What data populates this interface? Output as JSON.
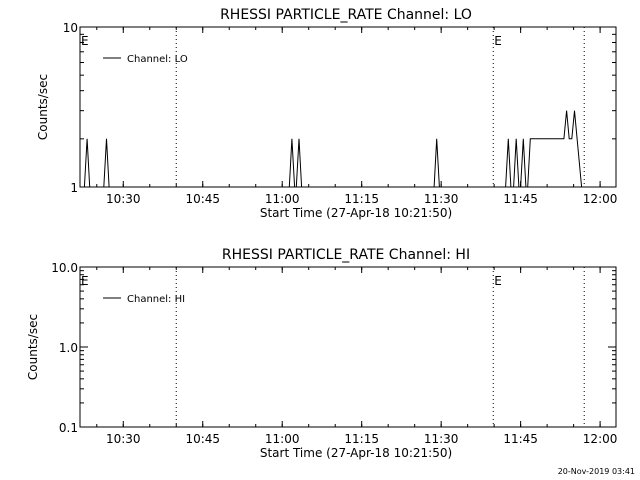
{
  "timestamp": "20-Nov-2019 03:41",
  "chart_data": [
    {
      "type": "line",
      "title": "RHESSI PARTICLE_RATE Channel: LO",
      "xlabel": "Start Time (27-Apr-18 10:21:50)",
      "ylabel": "Counts/sec",
      "yscale": "log",
      "ylim": [
        1,
        10
      ],
      "xlim": [
        "10:21:50",
        "12:03:00"
      ],
      "y_ticks": [
        {
          "value": 1,
          "label": "1"
        },
        {
          "value": 10,
          "label": "10"
        }
      ],
      "x_ticks": [
        {
          "time": "10:30",
          "label": "10:30"
        },
        {
          "time": "10:45",
          "label": "10:45"
        },
        {
          "time": "11:00",
          "label": "11:00"
        },
        {
          "time": "11:15",
          "label": "11:15"
        },
        {
          "time": "11:30",
          "label": "11:30"
        },
        {
          "time": "11:45",
          "label": "11:45"
        },
        {
          "time": "12:00",
          "label": "12:00"
        }
      ],
      "legend": {
        "position": "top-left",
        "entries": [
          "Channel: LO"
        ]
      },
      "event_lines": [
        {
          "time": "10:21:50",
          "label": "E"
        },
        {
          "time": "10:40:00",
          "label": ""
        },
        {
          "time": "11:39:50",
          "label": "E"
        },
        {
          "time": "11:57:00",
          "label": ""
        }
      ],
      "series": [
        {
          "name": "Channel: LO",
          "points": [
            [
              "10:22:40",
              1
            ],
            [
              "10:23:10",
              2
            ],
            [
              "10:23:40",
              1
            ],
            [
              "10:26:20",
              1
            ],
            [
              "10:26:50",
              2
            ],
            [
              "10:27:20",
              1
            ],
            [
              "11:01:20",
              1
            ],
            [
              "11:01:50",
              2
            ],
            [
              "11:02:20",
              1
            ],
            [
              "11:02:40",
              1
            ],
            [
              "11:03:10",
              2
            ],
            [
              "11:03:40",
              1
            ],
            [
              "11:28:40",
              1
            ],
            [
              "11:29:10",
              2
            ],
            [
              "11:29:40",
              1
            ],
            [
              "11:42:10",
              1
            ],
            [
              "11:42:40",
              2
            ],
            [
              "11:43:10",
              1
            ],
            [
              "11:43:40",
              1
            ],
            [
              "11:44:10",
              2
            ],
            [
              "11:44:40",
              1
            ],
            [
              "11:45:00",
              1
            ],
            [
              "11:45:30",
              2
            ],
            [
              "11:46:00",
              1
            ],
            [
              "11:46:20",
              1
            ],
            [
              "11:46:50",
              2
            ],
            [
              "11:53:10",
              2
            ],
            [
              "11:53:40",
              3
            ],
            [
              "11:54:10",
              2
            ],
            [
              "11:54:40",
              2
            ],
            [
              "11:55:10",
              3
            ],
            [
              "11:55:40",
              2
            ],
            [
              "11:56:30",
              1
            ]
          ]
        }
      ]
    },
    {
      "type": "line",
      "title": "RHESSI PARTICLE_RATE Channel: HI",
      "xlabel": "Start Time (27-Apr-18 10:21:50)",
      "ylabel": "Counts/sec",
      "yscale": "log",
      "ylim": [
        0.1,
        10
      ],
      "xlim": [
        "10:21:50",
        "12:03:00"
      ],
      "y_ticks": [
        {
          "value": 0.1,
          "label": "0.1"
        },
        {
          "value": 1,
          "label": "1.0"
        },
        {
          "value": 10,
          "label": "10.0"
        }
      ],
      "x_ticks": [
        {
          "time": "10:30",
          "label": "10:30"
        },
        {
          "time": "10:45",
          "label": "10:45"
        },
        {
          "time": "11:00",
          "label": "11:00"
        },
        {
          "time": "11:15",
          "label": "11:15"
        },
        {
          "time": "11:30",
          "label": "11:30"
        },
        {
          "time": "11:45",
          "label": "11:45"
        },
        {
          "time": "12:00",
          "label": "12:00"
        }
      ],
      "legend": {
        "position": "top-left",
        "entries": [
          "Channel: HI"
        ]
      },
      "event_lines": [
        {
          "time": "10:21:50",
          "label": "E"
        },
        {
          "time": "10:40:00",
          "label": ""
        },
        {
          "time": "11:39:50",
          "label": "E"
        },
        {
          "time": "11:57:00",
          "label": ""
        }
      ],
      "series": [
        {
          "name": "Channel: HI",
          "points": []
        }
      ]
    }
  ]
}
